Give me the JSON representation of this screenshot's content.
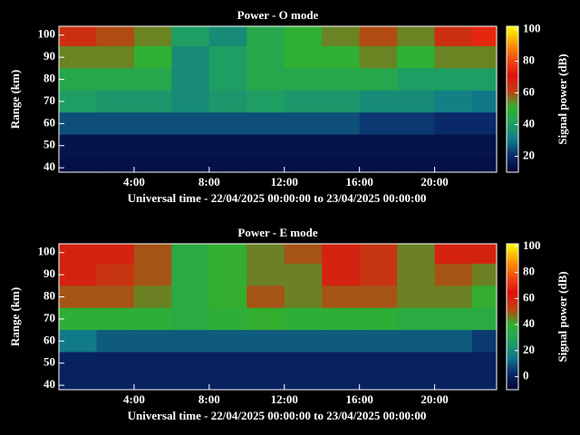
{
  "chart_data": [
    {
      "type": "heatmap",
      "title": "Power - O mode",
      "x_label": "Universal time - 22/04/2025 00:00:00 to 23/04/2025 00:00:00",
      "y_label": "Range (km)",
      "colorbar_label": "Signal power (dB)",
      "xlim": [
        0,
        23.3
      ],
      "ylim": [
        38,
        104
      ],
      "xticks": [
        {
          "value": 4,
          "label": "4:00"
        },
        {
          "value": 8,
          "label": "8:00"
        },
        {
          "value": 12,
          "label": "12:00"
        },
        {
          "value": 16,
          "label": "16:00"
        },
        {
          "value": 20,
          "label": "20:00"
        }
      ],
      "yticks": [
        40,
        50,
        60,
        70,
        80,
        90,
        100
      ],
      "clim": [
        10,
        102
      ],
      "cticks": [
        20,
        40,
        60,
        80,
        100
      ],
      "colormap": [
        "#000030",
        "#0a2a6a",
        "#107a8a",
        "#20a060",
        "#30b030",
        "#c04010",
        "#e01010",
        "#f05010",
        "#ffa000",
        "#ffff00"
      ],
      "x_edges": [
        0,
        2,
        4,
        6,
        8,
        10,
        12,
        14,
        16,
        18,
        20,
        22,
        23.3
      ],
      "y_edges": [
        104,
        95,
        85,
        75,
        65,
        55,
        45,
        38
      ],
      "z": [
        [
          65,
          60,
          55,
          40,
          35,
          45,
          50,
          55,
          60,
          55,
          65,
          75
        ],
        [
          55,
          55,
          50,
          35,
          40,
          45,
          50,
          50,
          55,
          50,
          55,
          55
        ],
        [
          45,
          45,
          45,
          35,
          40,
          45,
          45,
          45,
          45,
          40,
          40,
          40
        ],
        [
          40,
          38,
          38,
          35,
          38,
          40,
          38,
          38,
          35,
          35,
          32,
          30
        ],
        [
          25,
          25,
          25,
          25,
          25,
          25,
          25,
          25,
          22,
          22,
          20,
          20
        ],
        [
          15,
          15,
          15,
          15,
          15,
          15,
          15,
          15,
          15,
          15,
          15,
          15
        ],
        [
          14,
          14,
          14,
          14,
          14,
          14,
          14,
          14,
          14,
          14,
          14,
          14
        ]
      ]
    },
    {
      "type": "heatmap",
      "title": "Power - E mode",
      "x_label": "Universal time - 22/04/2025 00:00:00 to 23/04/2025 00:00:00",
      "y_label": "Range (km)",
      "colorbar_label": "Signal power (dB)",
      "xlim": [
        0,
        23.3
      ],
      "ylim": [
        38,
        104
      ],
      "xticks": [
        {
          "value": 4,
          "label": "4:00"
        },
        {
          "value": 8,
          "label": "8:00"
        },
        {
          "value": 12,
          "label": "12:00"
        },
        {
          "value": 16,
          "label": "16:00"
        },
        {
          "value": 20,
          "label": "20:00"
        }
      ],
      "yticks": [
        40,
        50,
        60,
        70,
        80,
        90,
        100
      ],
      "clim": [
        -10,
        102
      ],
      "cticks": [
        0,
        20,
        40,
        60,
        80,
        100
      ],
      "colormap": [
        "#000030",
        "#0a2a6a",
        "#107a8a",
        "#20a060",
        "#30b030",
        "#c04010",
        "#e01010",
        "#f05010",
        "#ffa000",
        "#ffff00"
      ],
      "x_edges": [
        0,
        2,
        4,
        6,
        8,
        10,
        12,
        14,
        16,
        18,
        20,
        22,
        23.3
      ],
      "y_edges": [
        104,
        95,
        85,
        75,
        65,
        55,
        45,
        38
      ],
      "z": [
        [
          60,
          60,
          50,
          35,
          40,
          45,
          50,
          60,
          55,
          45,
          60,
          60
        ],
        [
          60,
          55,
          50,
          35,
          40,
          45,
          45,
          60,
          55,
          45,
          50,
          45
        ],
        [
          50,
          50,
          45,
          35,
          40,
          50,
          45,
          50,
          50,
          45,
          45,
          40
        ],
        [
          38,
          38,
          38,
          35,
          38,
          40,
          38,
          38,
          38,
          35,
          35,
          35
        ],
        [
          15,
          10,
          10,
          10,
          10,
          10,
          10,
          10,
          10,
          10,
          10,
          5
        ],
        [
          0,
          0,
          0,
          0,
          0,
          0,
          0,
          0,
          0,
          0,
          0,
          0
        ],
        [
          0,
          0,
          0,
          0,
          0,
          0,
          0,
          0,
          0,
          0,
          0,
          0
        ]
      ]
    }
  ]
}
